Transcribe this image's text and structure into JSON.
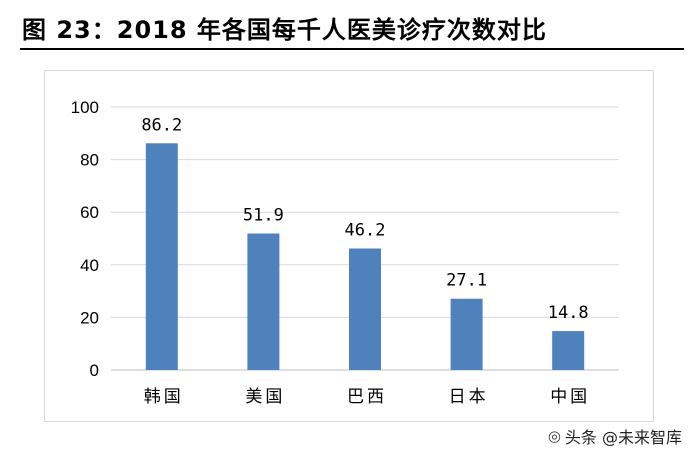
{
  "figure": {
    "title": "图 23：2018 年各国每千人医美诊疗次数对比"
  },
  "watermark": {
    "text": "头条 @未来智库",
    "icon": "weibo-like-icon"
  },
  "colors": {
    "bar": "#4f81bd",
    "grid": "#d9d9d9",
    "axis": "#bfbfbf"
  },
  "chart_data": {
    "type": "bar",
    "title": "",
    "xlabel": "",
    "ylabel": "",
    "categories": [
      "韩国",
      "美国",
      "巴西",
      "日本",
      "中国"
    ],
    "values": [
      86.2,
      51.9,
      46.2,
      27.1,
      14.8
    ],
    "data_labels": [
      "86.2",
      "51.9",
      "46.2",
      "27.1",
      "14.8"
    ],
    "ylim": [
      0,
      100
    ],
    "yticks": [
      0,
      20,
      40,
      60,
      80,
      100
    ],
    "grid": true,
    "legend": "none"
  }
}
